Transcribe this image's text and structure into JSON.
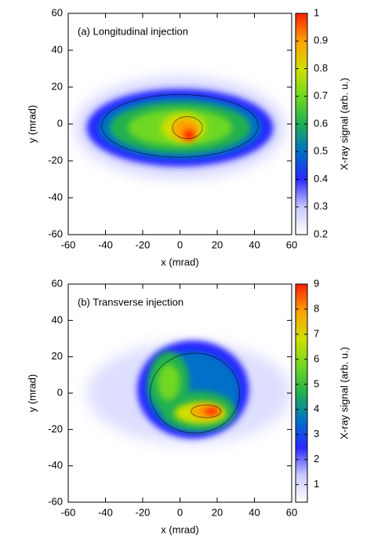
{
  "chart_data": [
    {
      "type": "heatmap",
      "annotation": "(a) Longitudinal injection",
      "x_label": "x (mrad)",
      "y_label": "y (mrad)",
      "colorbar_label": "X-ray signal (arb. u.)",
      "xlim": [
        -60,
        60
      ],
      "xticks": [
        -60,
        -40,
        -20,
        0,
        20,
        40,
        60
      ],
      "ylim": [
        -60,
        60
      ],
      "yticks": [
        -60,
        -40,
        -20,
        0,
        20,
        40,
        60
      ],
      "clim": [
        0.2,
        1
      ],
      "cticks": [
        0.2,
        0.3,
        0.4,
        0.5,
        0.6,
        0.7,
        0.8,
        0.9,
        1
      ],
      "colormap": [
        "#ffffff",
        "#c8c8ff",
        "#2828ff",
        "#0070c8",
        "#20b050",
        "#70d820",
        "#d0e000",
        "#ffa000",
        "#ff2000"
      ]
    },
    {
      "type": "heatmap",
      "annotation": "(b) Transverse injection",
      "x_label": "x (mrad)",
      "y_label": "y (mrad)",
      "colorbar_label": "X-ray signal (arb. u.)",
      "xlim": [
        -60,
        60
      ],
      "xticks": [
        -60,
        -40,
        -20,
        0,
        20,
        40,
        60
      ],
      "ylim": [
        -60,
        60
      ],
      "yticks": [
        -60,
        -40,
        -20,
        0,
        20,
        40,
        60
      ],
      "clim": [
        0.3,
        9
      ],
      "cticks": [
        1,
        2,
        3,
        4,
        5,
        6,
        7,
        8,
        9
      ],
      "colormap": [
        "#ffffff",
        "#c8c8ff",
        "#2828ff",
        "#0070c8",
        "#20b050",
        "#70d820",
        "#d0e000",
        "#ffa000",
        "#ff2000"
      ]
    }
  ]
}
